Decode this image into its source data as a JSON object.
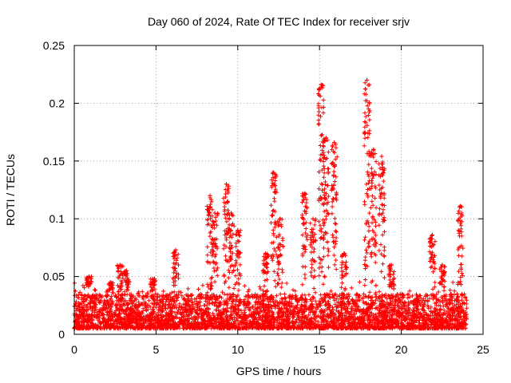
{
  "chart_data": {
    "type": "scatter",
    "title": "Day 060 of 2024, Rate Of TEC Index for receiver srjv",
    "xlabel": "GPS time / hours",
    "ylabel": "ROTI / TECUs",
    "xlim": [
      0,
      25
    ],
    "ylim": [
      0,
      0.25
    ],
    "xticks": [
      0,
      5,
      10,
      15,
      20,
      25
    ],
    "yticks": [
      0,
      0.05,
      0.1,
      0.15,
      0.2,
      0.25
    ],
    "xtick_labels": [
      "0",
      "5",
      "10",
      "15",
      "20",
      "25"
    ],
    "ytick_labels": [
      "0",
      "0.05",
      "0.1",
      "0.15",
      "0.2",
      "0.25"
    ],
    "grid": true,
    "marker": "+",
    "series_color": "#ff0000",
    "series": [
      {
        "name": "ROTI",
        "background_band": {
          "x_range": [
            0,
            24
          ],
          "y_min": 0.005,
          "y_max": 0.035
        },
        "peaks": [
          {
            "x": 0.9,
            "y": 0.05
          },
          {
            "x": 2.2,
            "y": 0.045
          },
          {
            "x": 2.8,
            "y": 0.06
          },
          {
            "x": 3.2,
            "y": 0.055
          },
          {
            "x": 4.8,
            "y": 0.048
          },
          {
            "x": 6.2,
            "y": 0.073
          },
          {
            "x": 8.3,
            "y": 0.12
          },
          {
            "x": 8.6,
            "y": 0.105
          },
          {
            "x": 9.3,
            "y": 0.13
          },
          {
            "x": 9.6,
            "y": 0.105
          },
          {
            "x": 10.0,
            "y": 0.09
          },
          {
            "x": 11.7,
            "y": 0.07
          },
          {
            "x": 12.2,
            "y": 0.14
          },
          {
            "x": 12.6,
            "y": 0.1
          },
          {
            "x": 14.1,
            "y": 0.122
          },
          {
            "x": 14.6,
            "y": 0.1
          },
          {
            "x": 15.1,
            "y": 0.216
          },
          {
            "x": 15.4,
            "y": 0.17
          },
          {
            "x": 15.9,
            "y": 0.166
          },
          {
            "x": 16.5,
            "y": 0.07
          },
          {
            "x": 17.9,
            "y": 0.22
          },
          {
            "x": 18.3,
            "y": 0.16
          },
          {
            "x": 18.8,
            "y": 0.154
          },
          {
            "x": 19.4,
            "y": 0.06
          },
          {
            "x": 21.9,
            "y": 0.086
          },
          {
            "x": 22.5,
            "y": 0.06
          },
          {
            "x": 23.6,
            "y": 0.111
          }
        ]
      }
    ]
  }
}
